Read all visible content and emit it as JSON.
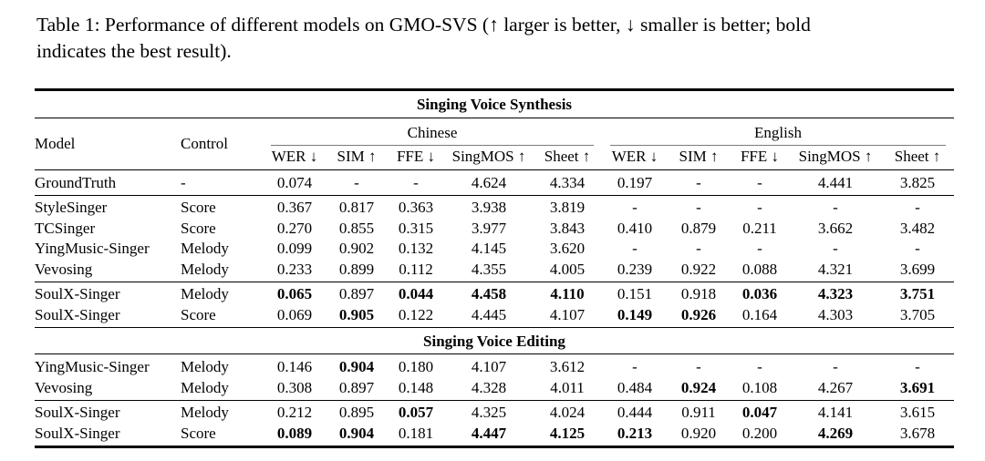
{
  "caption": {
    "line1": "Table 1: Performance of different models on GMO-SVS (↑ larger is better, ↓ smaller is better; bold",
    "line2": "indicates the best result)."
  },
  "colors": {
    "text": "#000000",
    "background": "#ffffff",
    "rule": "#000000",
    "cmidrule": "#7a7a7a"
  },
  "table": {
    "col_model": "Model",
    "col_control": "Control",
    "group_chinese": "Chinese",
    "group_english": "English",
    "metric_headers": [
      "WER ↓",
      "SIM ↑",
      "FFE ↓",
      "SingMOS ↑",
      "Sheet ↑"
    ],
    "sections": [
      {
        "title": "Singing Voice Synthesis",
        "groups": [
          {
            "rows": [
              {
                "model": "GroundTruth",
                "control": "-",
                "values": [
                  "0.074",
                  "-",
                  "-",
                  "4.624",
                  "4.334",
                  "0.197",
                  "-",
                  "-",
                  "4.441",
                  "3.825"
                ],
                "bold": [
                  false,
                  false,
                  false,
                  false,
                  false,
                  false,
                  false,
                  false,
                  false,
                  false
                ]
              }
            ]
          },
          {
            "rows": [
              {
                "model": "StyleSinger",
                "control": "Score",
                "values": [
                  "0.367",
                  "0.817",
                  "0.363",
                  "3.938",
                  "3.819",
                  "-",
                  "-",
                  "-",
                  "-",
                  "-"
                ],
                "bold": [
                  false,
                  false,
                  false,
                  false,
                  false,
                  false,
                  false,
                  false,
                  false,
                  false
                ]
              },
              {
                "model": "TCSinger",
                "control": "Score",
                "values": [
                  "0.270",
                  "0.855",
                  "0.315",
                  "3.977",
                  "3.843",
                  "0.410",
                  "0.879",
                  "0.211",
                  "3.662",
                  "3.482"
                ],
                "bold": [
                  false,
                  false,
                  false,
                  false,
                  false,
                  false,
                  false,
                  false,
                  false,
                  false
                ]
              },
              {
                "model": "YingMusic-Singer",
                "control": "Melody",
                "values": [
                  "0.099",
                  "0.902",
                  "0.132",
                  "4.145",
                  "3.620",
                  "-",
                  "-",
                  "-",
                  "-",
                  "-"
                ],
                "bold": [
                  false,
                  false,
                  false,
                  false,
                  false,
                  false,
                  false,
                  false,
                  false,
                  false
                ]
              },
              {
                "model": "Vevosing",
                "control": "Melody",
                "values": [
                  "0.233",
                  "0.899",
                  "0.112",
                  "4.355",
                  "4.005",
                  "0.239",
                  "0.922",
                  "0.088",
                  "4.321",
                  "3.699"
                ],
                "bold": [
                  false,
                  false,
                  false,
                  false,
                  false,
                  false,
                  false,
                  false,
                  false,
                  false
                ]
              }
            ]
          },
          {
            "rows": [
              {
                "model": "SoulX-Singer",
                "control": "Melody",
                "values": [
                  "0.065",
                  "0.897",
                  "0.044",
                  "4.458",
                  "4.110",
                  "0.151",
                  "0.918",
                  "0.036",
                  "4.323",
                  "3.751"
                ],
                "bold": [
                  true,
                  false,
                  true,
                  true,
                  true,
                  false,
                  false,
                  true,
                  true,
                  true
                ]
              },
              {
                "model": "SoulX-Singer",
                "control": "Score",
                "values": [
                  "0.069",
                  "0.905",
                  "0.122",
                  "4.445",
                  "4.107",
                  "0.149",
                  "0.926",
                  "0.164",
                  "4.303",
                  "3.705"
                ],
                "bold": [
                  false,
                  true,
                  false,
                  false,
                  false,
                  true,
                  true,
                  false,
                  false,
                  false
                ]
              }
            ]
          }
        ]
      },
      {
        "title": "Singing Voice Editing",
        "groups": [
          {
            "rows": [
              {
                "model": "YingMusic-Singer",
                "control": "Melody",
                "values": [
                  "0.146",
                  "0.904",
                  "0.180",
                  "4.107",
                  "3.612",
                  "-",
                  "-",
                  "-",
                  "-",
                  "-"
                ],
                "bold": [
                  false,
                  true,
                  false,
                  false,
                  false,
                  false,
                  false,
                  false,
                  false,
                  false
                ]
              },
              {
                "model": "Vevosing",
                "control": "Melody",
                "values": [
                  "0.308",
                  "0.897",
                  "0.148",
                  "4.328",
                  "4.011",
                  "0.484",
                  "0.924",
                  "0.108",
                  "4.267",
                  "3.691"
                ],
                "bold": [
                  false,
                  false,
                  false,
                  false,
                  false,
                  false,
                  true,
                  false,
                  false,
                  true
                ]
              }
            ]
          },
          {
            "rows": [
              {
                "model": "SoulX-Singer",
                "control": "Melody",
                "values": [
                  "0.212",
                  "0.895",
                  "0.057",
                  "4.325",
                  "4.024",
                  "0.444",
                  "0.911",
                  "0.047",
                  "4.141",
                  "3.615"
                ],
                "bold": [
                  false,
                  false,
                  true,
                  false,
                  false,
                  false,
                  false,
                  true,
                  false,
                  false
                ]
              },
              {
                "model": "SoulX-Singer",
                "control": "Score",
                "values": [
                  "0.089",
                  "0.904",
                  "0.181",
                  "4.447",
                  "4.125",
                  "0.213",
                  "0.920",
                  "0.200",
                  "4.269",
                  "3.678"
                ],
                "bold": [
                  true,
                  true,
                  false,
                  true,
                  true,
                  true,
                  false,
                  false,
                  true,
                  false
                ]
              }
            ]
          }
        ]
      }
    ]
  }
}
